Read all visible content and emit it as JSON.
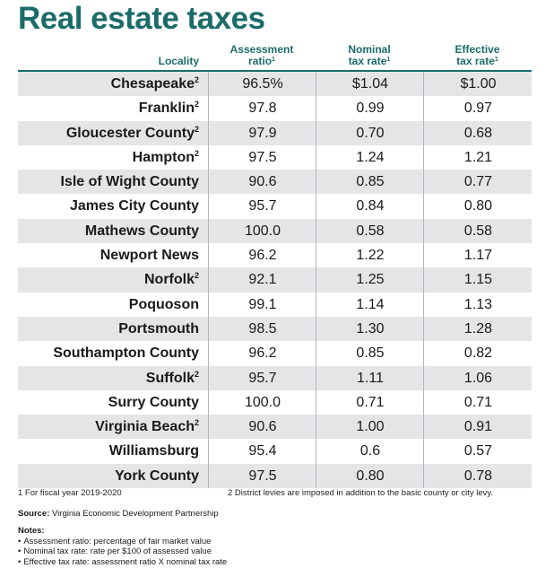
{
  "title": "Real estate taxes",
  "columns": {
    "locality": "Locality",
    "assessment_line1": "Assessment",
    "assessment_line2": "ratio",
    "nominal_line1": "Nominal",
    "nominal_line2": "tax rate",
    "effective_line1": "Effective",
    "effective_line2": "tax rate",
    "footnote_mark": "1"
  },
  "rows": [
    {
      "locality": "Chesapeake",
      "note": "2",
      "assessment": "96.5%",
      "nominal": "$1.04",
      "effective": "$1.00"
    },
    {
      "locality": "Franklin",
      "note": "2",
      "assessment": "97.8",
      "nominal": "0.99",
      "effective": "0.97"
    },
    {
      "locality": "Gloucester County",
      "note": "2",
      "assessment": "97.9",
      "nominal": "0.70",
      "effective": "0.68"
    },
    {
      "locality": "Hampton",
      "note": "2",
      "assessment": "97.5",
      "nominal": "1.24",
      "effective": "1.21"
    },
    {
      "locality": "Isle of Wight County",
      "note": "",
      "assessment": "90.6",
      "nominal": "0.85",
      "effective": "0.77"
    },
    {
      "locality": "James City County",
      "note": "",
      "assessment": "95.7",
      "nominal": "0.84",
      "effective": "0.80"
    },
    {
      "locality": "Mathews County",
      "note": "",
      "assessment": "100.0",
      "nominal": "0.58",
      "effective": "0.58"
    },
    {
      "locality": "Newport News",
      "note": "",
      "assessment": "96.2",
      "nominal": "1.22",
      "effective": "1.17"
    },
    {
      "locality": "Norfolk",
      "note": "2",
      "assessment": "92.1",
      "nominal": "1.25",
      "effective": "1.15"
    },
    {
      "locality": "Poquoson",
      "note": "",
      "assessment": "99.1",
      "nominal": "1.14",
      "effective": "1.13"
    },
    {
      "locality": "Portsmouth",
      "note": "",
      "assessment": "98.5",
      "nominal": "1.30",
      "effective": "1.28"
    },
    {
      "locality": "Southampton County",
      "note": "",
      "assessment": "96.2",
      "nominal": "0.85",
      "effective": "0.82"
    },
    {
      "locality": "Suffolk",
      "note": "2",
      "assessment": "95.7",
      "nominal": "1.11",
      "effective": "1.06"
    },
    {
      "locality": "Surry County",
      "note": "",
      "assessment": "100.0",
      "nominal": "0.71",
      "effective": "0.71"
    },
    {
      "locality": "Virginia Beach",
      "note": "2",
      "assessment": "90.6",
      "nominal": "1.00",
      "effective": "0.91"
    },
    {
      "locality": "Williamsburg",
      "note": "",
      "assessment": "95.4",
      "nominal": "0.6",
      "effective": "0.57"
    },
    {
      "locality": "York County",
      "note": "",
      "assessment": "97.5",
      "nominal": "0.80",
      "effective": "0.78"
    }
  ],
  "footnotes": {
    "fn1": "1 For fiscal year 2019-2020",
    "fn2": "2 District levies are imposed in addition to the basic county or city levy."
  },
  "source": {
    "label": "Source:",
    "text": "Virginia Economic Development Partnership"
  },
  "notes": {
    "heading": "Notes:",
    "items": [
      "Assessment ratio: percentage of fair market value",
      "Nominal tax rate: rate per $100 of assessed value",
      "Effective tax rate: assessment ratio X nominal tax rate"
    ]
  },
  "colors": {
    "accent": "#1c6b6b",
    "stripe": "#e4e5e7"
  }
}
